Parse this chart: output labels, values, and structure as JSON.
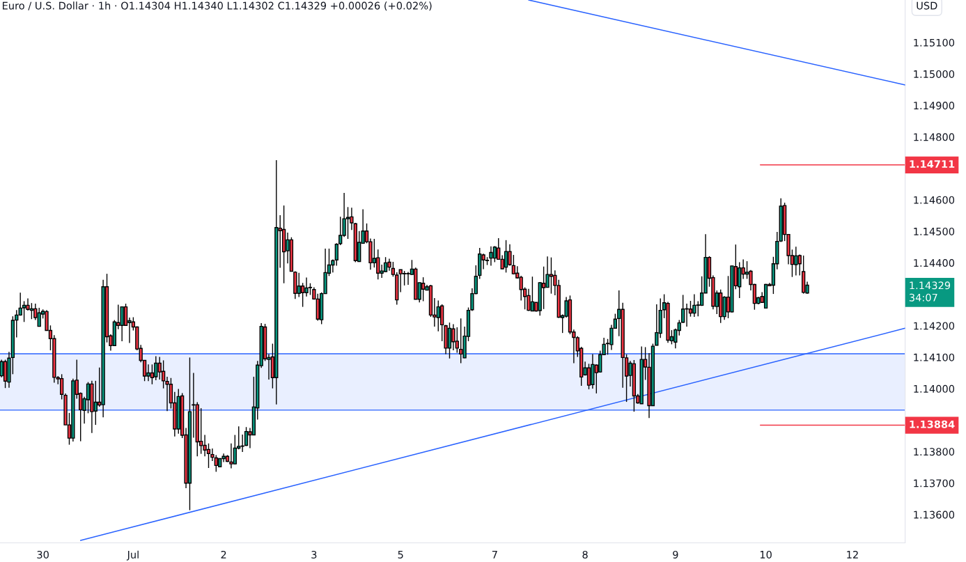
{
  "chart_data": {
    "type": "candlestick",
    "title": "Euro / U.S. Dollar · 1h · O1.14304 H1.14340 L1.14302 C1.14329 +0.00026 (+0.02%)",
    "ylabel": "USD",
    "colors": [
      "#089981",
      "#f23645",
      "#089981",
      "#089981",
      "#089981",
      "#089981",
      "#089981",
      "#f23645",
      "#089981",
      "#f23645",
      "#089981",
      "#089981",
      "#f23645",
      "#f23645",
      "#f23645",
      "#f23645",
      "#f23645",
      "#f23645",
      "#f23645",
      "#089981",
      "#f23645",
      "#f23645",
      "#089981",
      "#089981",
      "#f23645",
      "#089981",
      "#f23645",
      "#089981",
      "#f23645",
      "#f23645",
      "#089981",
      "#f23645",
      "#089981",
      "#f23645",
      "#089981",
      "#f23645",
      "#f23645",
      "#f23645",
      "#f23645",
      "#089981",
      "#f23645",
      "#089981",
      "#f23645",
      "#f23645",
      "#f23645",
      "#f23645",
      "#f23645",
      "#089981",
      "#f23645",
      "#f23645",
      "#089981",
      "#f23645",
      "#f23645",
      "#f23645",
      "#f23645",
      "#f23645",
      "#f23645",
      "#f23645",
      "#089981",
      "#089981",
      "#f23645",
      "#f23645",
      "#089981",
      "#089981",
      "#089981",
      "#089981",
      "#f23645",
      "#089981",
      "#089981",
      "#089981",
      "#f23645",
      "#089981",
      "#f23645",
      "#089981",
      "#f23645",
      "#f23645",
      "#089981",
      "#f23645",
      "#f23645",
      "#089981",
      "#f23645",
      "#089981",
      "#f23645",
      "#f23645",
      "#f23645",
      "#089981",
      "#089981",
      "#089981",
      "#089981",
      "#089981",
      "#089981",
      "#089981",
      "#089981",
      "#f23645",
      "#f23645",
      "#089981",
      "#089981",
      "#f23645",
      "#f23645",
      "#089981",
      "#f23645",
      "#089981",
      "#089981",
      "#f23645",
      "#f23645",
      "#f23645",
      "#f23645",
      "#089981",
      "#f23645",
      "#089981",
      "#f23645",
      "#089981",
      "#f23645",
      "#089981",
      "#f23645",
      "#f23645",
      "#089981",
      "#f23645",
      "#f23645",
      "#089981",
      "#f23645",
      "#f23645",
      "#f23645",
      "#089981",
      "#089981",
      "#089981",
      "#089981",
      "#089981",
      "#f23645",
      "#089981",
      "#089981",
      "#089981",
      "#f23645",
      "#f23645",
      "#089981",
      "#f23645",
      "#f23645",
      "#f23645",
      "#f23645",
      "#f23645",
      "#f23645",
      "#089981",
      "#f23645",
      "#089981",
      "#f23645",
      "#089981",
      "#f23645",
      "#f23645",
      "#f23645",
      "#089981",
      "#089981",
      "#f23645",
      "#f23645",
      "#f23645",
      "#f23645",
      "#089981",
      "#f23645",
      "#089981",
      "#f23645",
      "#089981",
      "#089981",
      "#f23645",
      "#089981",
      "#089981",
      "#089981",
      "#f23645",
      "#f23645",
      "#089981",
      "#f23645",
      "#f23645",
      "#089981",
      "#f23645",
      "#f23645",
      "#089981",
      "#089981",
      "#089981",
      "#089981",
      "#f23645",
      "#089981",
      "#089981",
      "#089981",
      "#089981",
      "#089981",
      "#f23645",
      "#089981",
      "#089981",
      "#089981",
      "#089981",
      "#f23645",
      "#f23645",
      "#089981",
      "#f23645",
      "#089981",
      "#f23645",
      "#089981",
      "#f23645",
      "#089981",
      "#f23645",
      "#089981",
      "#f23645",
      "#f23645",
      "#089981",
      "#f23645",
      "#089981",
      "#f23645",
      "#089981",
      "#089981",
      "#089981",
      "#f23645",
      "#f23645",
      "#f23645",
      "#089981",
      "#f23645",
      "#f23645",
      "#089981",
      null,
      null,
      null,
      null,
      null,
      null,
      null,
      null,
      null,
      null,
      null,
      null,
      null,
      null,
      null,
      null,
      null,
      null,
      null,
      null,
      null,
      null,
      null,
      null,
      null,
      null
    ],
    "categories": [
      null,
      null,
      null,
      null,
      null,
      null,
      null,
      null,
      null,
      null,
      null,
      "30",
      null,
      null,
      null,
      null,
      null,
      null,
      null,
      null,
      null,
      null,
      null,
      null,
      null,
      null,
      null,
      null,
      null,
      null,
      null,
      null,
      null,
      null,
      null,
      "Jul",
      null,
      null,
      null,
      null,
      null,
      null,
      null,
      null,
      null,
      null,
      null,
      null,
      null,
      null,
      null,
      null,
      null,
      null,
      null,
      null,
      null,
      null,
      null,
      "2",
      null,
      null,
      null,
      null,
      null,
      null,
      null,
      null,
      null,
      null,
      null,
      null,
      null,
      null,
      null,
      null,
      null,
      null,
      null,
      null,
      null,
      null,
      null,
      "3",
      null,
      null,
      null,
      null,
      null,
      null,
      null,
      null,
      null,
      null,
      null,
      null,
      null,
      null,
      null,
      null,
      null,
      null,
      null,
      null,
      null,
      null,
      "5",
      null,
      null,
      null,
      null,
      null,
      null,
      null,
      null,
      null,
      null,
      null,
      null,
      null,
      null,
      null,
      null,
      null,
      null,
      null,
      null,
      null,
      null,
      null,
      null,
      "7",
      null,
      null,
      null,
      null,
      null,
      null,
      null,
      null,
      null,
      null,
      null,
      null,
      null,
      null,
      null,
      null,
      null,
      null,
      null,
      null,
      null,
      null,
      null,
      "8",
      null,
      null,
      null,
      null,
      null,
      null,
      null,
      null,
      null,
      null,
      null,
      null,
      null,
      null,
      null,
      null,
      null,
      null,
      null,
      null,
      null,
      null,
      null,
      "9",
      null,
      null,
      null,
      null,
      null,
      null,
      null,
      null,
      null,
      null,
      null,
      null,
      null,
      null,
      null,
      null,
      null,
      null,
      null,
      null,
      null,
      null,
      null,
      "10",
      null,
      null,
      null,
      null,
      null,
      null,
      null,
      null,
      null,
      null,
      null,
      null,
      null,
      null,
      null,
      null,
      null,
      null,
      null,
      null,
      null,
      null,
      "12",
      null,
      null,
      null,
      null,
      null,
      null,
      null,
      null,
      null,
      null,
      null,
      null,
      null,
      null
    ],
    "ohlc": [
      [
        1.14041,
        1.14092,
        1.14036,
        1.14086
      ],
      [
        1.14086,
        1.14092,
        1.14002,
        1.14024
      ],
      [
        1.14021,
        1.14117,
        1.14003,
        1.14097
      ],
      [
        1.14099,
        1.1423,
        1.14046,
        1.14217
      ],
      [
        1.14218,
        1.1425,
        1.14163,
        1.14234
      ],
      [
        1.14234,
        1.14305,
        1.14232,
        1.14256
      ],
      [
        1.14257,
        1.14278,
        1.14212,
        1.14265
      ],
      [
        1.14265,
        1.14287,
        1.14248,
        1.14252
      ],
      [
        1.14249,
        1.14272,
        1.14221,
        1.14254
      ],
      [
        1.14254,
        1.1427,
        1.14218,
        1.14226
      ],
      [
        1.14198,
        1.14257,
        1.14197,
        1.14241
      ],
      [
        1.14237,
        1.14252,
        1.14223,
        1.14246
      ],
      [
        1.14245,
        1.1425,
        1.14184,
        1.14185
      ],
      [
        1.14185,
        1.14201,
        1.14122,
        1.14159
      ],
      [
        1.14159,
        1.1417,
        1.14019,
        1.14036
      ],
      [
        1.14035,
        1.1404,
        1.14014,
        1.14031
      ],
      [
        1.14032,
        1.14046,
        1.13966,
        1.13982
      ],
      [
        1.13979,
        1.13985,
        1.13885,
        1.13885
      ],
      [
        1.13885,
        1.13923,
        1.13822,
        1.13843
      ],
      [
        1.13843,
        1.14032,
        1.13832,
        1.14025
      ],
      [
        1.14027,
        1.14092,
        1.13968,
        1.13982
      ],
      [
        1.13985,
        1.13988,
        1.13833,
        1.13933
      ],
      [
        1.13931,
        1.13974,
        1.13889,
        1.13968
      ],
      [
        1.13965,
        1.14021,
        1.13922,
        1.14015
      ],
      [
        1.14015,
        1.14025,
        1.13859,
        1.13927
      ],
      [
        1.13929,
        1.14025,
        1.13885,
        1.13957
      ],
      [
        1.13957,
        1.14067,
        1.13943,
        1.13948
      ],
      [
        1.13949,
        1.14346,
        1.13909,
        1.14324
      ],
      [
        1.14324,
        1.14365,
        1.14147,
        1.14165
      ],
      [
        1.14168,
        1.14173,
        1.14121,
        1.14137
      ],
      [
        1.14137,
        1.14218,
        1.14136,
        1.14212
      ],
      [
        1.1421,
        1.14267,
        1.14189,
        1.14201
      ],
      [
        1.14201,
        1.14261,
        1.14151,
        1.1426
      ],
      [
        1.1426,
        1.1427,
        1.14201,
        1.14201
      ],
      [
        1.1421,
        1.14226,
        1.14145,
        1.14216
      ],
      [
        1.14212,
        1.14227,
        1.14185,
        1.14196
      ],
      [
        1.14196,
        1.14198,
        1.14122,
        1.14126
      ],
      [
        1.14128,
        1.14139,
        1.14084,
        1.1409
      ],
      [
        1.1409,
        1.1409,
        1.14024,
        1.1404
      ],
      [
        1.1404,
        1.14077,
        1.14024,
        1.1405
      ],
      [
        1.1405,
        1.14077,
        1.14014,
        1.14035
      ],
      [
        1.14038,
        1.14103,
        1.14027,
        1.14081
      ],
      [
        1.14081,
        1.14101,
        1.14029,
        1.14053
      ],
      [
        1.14055,
        1.1409,
        1.14001,
        1.14025
      ],
      [
        1.14023,
        1.14038,
        1.13929,
        1.14014
      ],
      [
        1.14014,
        1.14034,
        1.13937,
        1.13955
      ],
      [
        1.13955,
        1.1399,
        1.13848,
        1.13872
      ],
      [
        1.13872,
        1.13999,
        1.13857,
        1.13975
      ],
      [
        1.13977,
        1.13986,
        1.13843,
        1.13852
      ],
      [
        1.13853,
        1.13875,
        1.13684,
        1.137
      ],
      [
        1.137,
        1.14099,
        1.13614,
        1.13927
      ],
      [
        1.13949,
        1.1405,
        1.13844,
        1.13948
      ],
      [
        1.13949,
        1.13957,
        1.13785,
        1.13831
      ],
      [
        1.13833,
        1.13938,
        1.13793,
        1.13819
      ],
      [
        1.1382,
        1.13853,
        1.13785,
        1.13805
      ],
      [
        1.13807,
        1.13826,
        1.13748,
        1.13794
      ],
      [
        1.13791,
        1.1381,
        1.1377,
        1.13782
      ],
      [
        1.1378,
        1.13789,
        1.13736,
        1.13756
      ],
      [
        1.13752,
        1.13778,
        1.13751,
        1.13778
      ],
      [
        1.13778,
        1.13794,
        1.13767,
        1.13785
      ],
      [
        1.13785,
        1.13789,
        1.13767,
        1.13769
      ],
      [
        1.13767,
        1.13826,
        1.13747,
        1.13761
      ],
      [
        1.13761,
        1.13853,
        1.1376,
        1.13811
      ],
      [
        1.13811,
        1.1388,
        1.13807,
        1.13817
      ],
      [
        1.13817,
        1.13854,
        1.13799,
        1.13818
      ],
      [
        1.1382,
        1.13878,
        1.13818,
        1.13864
      ],
      [
        1.13863,
        1.13875,
        1.13811,
        1.13853
      ],
      [
        1.13853,
        1.14038,
        1.13852,
        1.13942
      ],
      [
        1.13939,
        1.14088,
        1.13902,
        1.14075
      ],
      [
        1.14073,
        1.14208,
        1.14066,
        1.14198
      ],
      [
        1.14196,
        1.14206,
        1.14088,
        1.14095
      ],
      [
        1.14093,
        1.1411,
        1.14029,
        1.14099
      ],
      [
        1.14101,
        1.14143,
        1.14001,
        1.14035
      ],
      [
        1.14035,
        1.14726,
        1.1395,
        1.14512
      ],
      [
        1.1451,
        1.14551,
        1.14384,
        1.14502
      ],
      [
        1.14506,
        1.14582,
        1.14335,
        1.14435
      ],
      [
        1.14438,
        1.14496,
        1.14398,
        1.14473
      ],
      [
        1.14473,
        1.14481,
        1.14372,
        1.14373
      ],
      [
        1.1437,
        1.14373,
        1.14285,
        1.14303
      ],
      [
        1.14303,
        1.14368,
        1.14291,
        1.14326
      ],
      [
        1.14326,
        1.14336,
        1.1426,
        1.14305
      ],
      [
        1.14305,
        1.14353,
        1.14293,
        1.1432
      ],
      [
        1.14322,
        1.14335,
        1.14298,
        1.14321
      ],
      [
        1.14315,
        1.14322,
        1.14283,
        1.14285
      ],
      [
        1.14285,
        1.14302,
        1.14216,
        1.14221
      ],
      [
        1.14219,
        1.14306,
        1.14205,
        1.14302
      ],
      [
        1.14302,
        1.14445,
        1.14301,
        1.14369
      ],
      [
        1.14367,
        1.14445,
        1.14358,
        1.14393
      ],
      [
        1.14393,
        1.14411,
        1.14369,
        1.14407
      ],
      [
        1.14409,
        1.14462,
        1.14391,
        1.14459
      ],
      [
        1.14461,
        1.14546,
        1.14456,
        1.14487
      ],
      [
        1.14487,
        1.14622,
        1.14482,
        1.1454
      ],
      [
        1.1454,
        1.14577,
        1.14476,
        1.14544
      ],
      [
        1.14546,
        1.14575,
        1.14504,
        1.14527
      ],
      [
        1.14524,
        1.14527,
        1.14402,
        1.14407
      ],
      [
        1.14404,
        1.14501,
        1.14404,
        1.14465
      ],
      [
        1.14462,
        1.1457,
        1.14461,
        1.14501
      ],
      [
        1.14501,
        1.14525,
        1.14462,
        1.14467
      ],
      [
        1.14467,
        1.14477,
        1.14378,
        1.144
      ],
      [
        1.144,
        1.14476,
        1.14385,
        1.14414
      ],
      [
        1.14416,
        1.14442,
        1.14347,
        1.14367
      ],
      [
        1.14367,
        1.14394,
        1.14352,
        1.14374
      ],
      [
        1.14372,
        1.14418,
        1.14371,
        1.144
      ],
      [
        1.14402,
        1.14413,
        1.14375,
        1.14386
      ],
      [
        1.14382,
        1.14403,
        1.14356,
        1.14363
      ],
      [
        1.14361,
        1.1437,
        1.14267,
        1.14282
      ],
      [
        1.14378,
        1.14378,
        1.14307,
        1.14365
      ],
      [
        1.14365,
        1.14374,
        1.14328,
        1.14366
      ],
      [
        1.14366,
        1.14371,
        1.1433,
        1.14365
      ],
      [
        1.14363,
        1.14409,
        1.14361,
        1.1438
      ],
      [
        1.1438,
        1.14385,
        1.14284,
        1.14284
      ],
      [
        1.14284,
        1.14337,
        1.14274,
        1.14337
      ],
      [
        1.14335,
        1.14354,
        1.14278,
        1.14316
      ],
      [
        1.14313,
        1.1433,
        1.14313,
        1.14324
      ],
      [
        1.14327,
        1.1433,
        1.14228,
        1.14234
      ],
      [
        1.14234,
        1.14288,
        1.14197,
        1.14228
      ],
      [
        1.14226,
        1.1428,
        1.14182,
        1.1426
      ],
      [
        1.14263,
        1.14268,
        1.14151,
        1.14203
      ],
      [
        1.142,
        1.14203,
        1.1411,
        1.14129
      ],
      [
        1.14129,
        1.1421,
        1.14096,
        1.14192
      ],
      [
        1.1419,
        1.14205,
        1.14122,
        1.14149
      ],
      [
        1.14151,
        1.14195,
        1.14114,
        1.14129
      ],
      [
        1.14125,
        1.14223,
        1.14081,
        1.1411
      ],
      [
        1.14098,
        1.14197,
        1.14097,
        1.14167
      ],
      [
        1.14166,
        1.14258,
        1.14151,
        1.14249
      ],
      [
        1.14251,
        1.14319,
        1.14247,
        1.14302
      ],
      [
        1.14302,
        1.14392,
        1.143,
        1.14357
      ],
      [
        1.1436,
        1.14447,
        1.14349,
        1.14428
      ],
      [
        1.14425,
        1.14429,
        1.1438,
        1.14409
      ],
      [
        1.14407,
        1.14418,
        1.14393,
        1.14408
      ],
      [
        1.14415,
        1.14452,
        1.14391,
        1.14433
      ],
      [
        1.14415,
        1.14453,
        1.14402,
        1.1445
      ],
      [
        1.14447,
        1.14478,
        1.14411,
        1.14411
      ],
      [
        1.14411,
        1.14424,
        1.1438,
        1.14381
      ],
      [
        1.14386,
        1.14472,
        1.14369,
        1.14436
      ],
      [
        1.14436,
        1.14459,
        1.14391,
        1.14394
      ],
      [
        1.14391,
        1.14425,
        1.14363,
        1.14365
      ],
      [
        1.14367,
        1.14389,
        1.1435,
        1.14352
      ],
      [
        1.14354,
        1.14359,
        1.1428,
        1.14315
      ],
      [
        1.14316,
        1.14322,
        1.14252,
        1.14293
      ],
      [
        1.14296,
        1.14317,
        1.14247,
        1.14249
      ],
      [
        1.14247,
        1.14356,
        1.14247,
        1.14276
      ],
      [
        1.14274,
        1.14274,
        1.14245,
        1.14247
      ],
      [
        1.14248,
        1.14339,
        1.14232,
        1.14337
      ],
      [
        1.14335,
        1.14388,
        1.14253,
        1.14321
      ],
      [
        1.14322,
        1.1442,
        1.14321,
        1.14363
      ],
      [
        1.14363,
        1.14417,
        1.14302,
        1.14357
      ],
      [
        1.1436,
        1.14376,
        1.14297,
        1.14328
      ],
      [
        1.14328,
        1.14346,
        1.14225,
        1.14227
      ],
      [
        1.14226,
        1.14236,
        1.14177,
        1.14232
      ],
      [
        1.1423,
        1.14291,
        1.14226,
        1.14279
      ],
      [
        1.14282,
        1.14296,
        1.14173,
        1.1418
      ],
      [
        1.1418,
        1.14188,
        1.14081,
        1.14163
      ],
      [
        1.14162,
        1.14167,
        1.14101,
        1.1412
      ],
      [
        1.14128,
        1.14133,
        1.14009,
        1.14037
      ],
      [
        1.14044,
        1.14086,
        1.14042,
        1.14066
      ],
      [
        1.14066,
        1.14079,
        1.13998,
        1.14011
      ],
      [
        1.14013,
        1.1411,
        1.14,
        1.14077
      ],
      [
        1.14075,
        1.14077,
        1.13985,
        1.14051
      ],
      [
        1.14053,
        1.14121,
        1.14051,
        1.14108
      ],
      [
        1.14108,
        1.14162,
        1.14107,
        1.14141
      ],
      [
        1.14144,
        1.14158,
        1.14108,
        1.14143
      ],
      [
        1.1414,
        1.14203,
        1.14123,
        1.14192
      ],
      [
        1.14192,
        1.14238,
        1.14192,
        1.14221
      ],
      [
        1.14223,
        1.14312,
        1.14167,
        1.14252
      ],
      [
        1.14252,
        1.14273,
        1.14003,
        1.14099
      ],
      [
        1.14098,
        1.14109,
        1.13958,
        1.1404
      ],
      [
        1.14042,
        1.14088,
        1.14007,
        1.14081
      ],
      [
        1.14079,
        1.14091,
        1.13927,
        1.13977
      ],
      [
        1.13977,
        1.13983,
        1.13952,
        1.13955
      ],
      [
        1.13952,
        1.14134,
        1.13952,
        1.14093
      ],
      [
        1.14093,
        1.14132,
        1.14028,
        1.14069
      ],
      [
        1.14068,
        1.14113,
        1.13907,
        1.13946
      ],
      [
        1.13946,
        1.14143,
        1.13946,
        1.14135
      ],
      [
        1.14138,
        1.14268,
        1.14138,
        1.14178
      ],
      [
        1.14176,
        1.14287,
        1.14161,
        1.14249
      ],
      [
        1.14251,
        1.143,
        1.14224,
        1.14273
      ],
      [
        1.14271,
        1.14276,
        1.14146,
        1.14154
      ],
      [
        1.14152,
        1.14186,
        1.14141,
        1.14165
      ],
      [
        1.14148,
        1.14191,
        1.14128,
        1.14187
      ],
      [
        1.14185,
        1.14218,
        1.14169,
        1.14209
      ],
      [
        1.14211,
        1.14298,
        1.14209,
        1.14253
      ],
      [
        1.14253,
        1.1427,
        1.14197,
        1.14254
      ],
      [
        1.14253,
        1.14279,
        1.14229,
        1.1424
      ],
      [
        1.1424,
        1.143,
        1.14228,
        1.14265
      ],
      [
        1.14265,
        1.14278,
        1.1423,
        1.14266
      ],
      [
        1.14265,
        1.14357,
        1.14263,
        1.14304
      ],
      [
        1.14304,
        1.14491,
        1.14304,
        1.14417
      ],
      [
        1.14417,
        1.14421,
        1.14324,
        1.14351
      ],
      [
        1.14353,
        1.1436,
        1.14252,
        1.14262
      ],
      [
        1.14261,
        1.14312,
        1.14237,
        1.14304
      ],
      [
        1.14304,
        1.14315,
        1.14209,
        1.14229
      ],
      [
        1.14229,
        1.14294,
        1.14219,
        1.14291
      ],
      [
        1.14291,
        1.14358,
        1.14224,
        1.14244
      ],
      [
        1.14244,
        1.14391,
        1.14242,
        1.1439
      ],
      [
        1.14388,
        1.14458,
        1.14316,
        1.14327
      ],
      [
        1.14324,
        1.14402,
        1.14288,
        1.14384
      ],
      [
        1.14384,
        1.14411,
        1.14349,
        1.14364
      ],
      [
        1.14364,
        1.14405,
        1.14349,
        1.1437
      ],
      [
        1.14373,
        1.14377,
        1.14312,
        1.14331
      ],
      [
        1.14331,
        1.14333,
        1.14251,
        1.14271
      ],
      [
        1.14271,
        1.14292,
        1.14268,
        1.14289
      ],
      [
        1.14293,
        1.14307,
        1.14273,
        1.14274
      ],
      [
        1.14256,
        1.14333,
        1.14256,
        1.14331
      ],
      [
        1.14331,
        1.14336,
        1.14326,
        1.14327
      ],
      [
        1.14329,
        1.14419,
        1.14301,
        1.14397
      ],
      [
        1.14397,
        1.14498,
        1.14379,
        1.14468
      ],
      [
        1.14469,
        1.14605,
        1.14466,
        1.1458
      ],
      [
        1.14582,
        1.14591,
        1.14469,
        1.1449
      ],
      [
        1.1449,
        1.14491,
        1.14395,
        1.14423
      ],
      [
        1.14423,
        1.14442,
        1.14355,
        1.14395
      ],
      [
        1.14394,
        1.14451,
        1.1436,
        1.14422
      ],
      [
        1.14423,
        1.14426,
        1.1436,
        1.14397
      ],
      [
        1.14372,
        1.14423,
        1.14302,
        1.14306
      ],
      [
        1.14304,
        1.1434,
        1.14302,
        1.14329
      ],
      null,
      null,
      null,
      null,
      null,
      null,
      null,
      null,
      null,
      null,
      null,
      null,
      null,
      null,
      null,
      null,
      null,
      null,
      null,
      null,
      null,
      null,
      null,
      null,
      null,
      null
    ],
    "series": [
      {
        "type": "line",
        "color": "#2962ff",
        "values": [
          null,
          null,
          null,
          null,
          null,
          null,
          null,
          null,
          null,
          null,
          null,
          null,
          null,
          null,
          null,
          null,
          null,
          null,
          null,
          null,
          null,
          1.13518,
          null,
          null,
          null,
          null,
          null,
          null,
          null,
          null,
          null,
          null,
          null,
          null,
          null,
          null,
          null,
          null,
          null,
          null,
          null,
          null,
          null,
          null,
          null,
          null,
          null,
          null,
          null,
          null,
          null,
          null,
          null,
          null,
          null,
          null,
          null,
          null,
          null,
          null,
          null,
          null,
          null,
          null,
          null,
          null,
          null,
          null,
          null,
          null,
          null,
          null,
          null,
          null,
          null,
          null,
          null,
          null,
          null,
          null,
          null,
          null,
          null,
          null,
          null,
          null,
          null,
          null,
          null,
          null,
          null,
          null,
          null,
          null,
          null,
          null,
          null,
          null,
          null,
          null,
          null,
          null,
          null,
          null,
          null,
          null,
          null,
          null,
          null,
          null,
          null,
          null,
          null,
          null,
          null,
          null,
          null,
          null,
          null,
          null,
          null,
          null,
          null,
          null,
          null,
          null,
          null,
          null,
          null,
          null,
          null,
          null,
          null,
          null,
          null,
          null,
          null,
          null,
          null,
          null,
          null,
          null,
          null,
          null,
          null,
          null,
          null,
          null,
          null,
          null,
          null,
          null,
          null,
          null,
          null,
          null,
          null,
          null,
          null,
          null,
          null,
          null,
          null,
          null,
          null,
          null,
          null,
          null,
          null,
          null,
          null,
          null,
          null,
          null,
          null,
          null,
          null,
          null,
          null,
          null,
          null,
          null,
          null,
          null,
          null,
          null,
          null,
          null,
          null,
          null,
          null,
          null,
          null,
          null,
          null,
          null,
          null,
          null,
          null,
          null,
          null,
          null,
          null,
          null,
          null,
          null,
          null,
          null,
          null,
          null,
          null,
          null,
          null,
          null,
          null,
          null,
          null,
          null,
          null,
          null,
          null,
          null,
          null,
          null,
          null,
          null,
          null,
          null,
          null,
          null,
          null,
          null,
          null,
          null,
          null,
          null,
          null,
          null,
          null,
          null,
          1.14192
        ]
      },
      {
        "type": "line",
        "color": "#2962ff",
        "values": [
          null,
          null,
          null,
          null,
          null,
          null,
          null,
          null,
          null,
          null,
          null,
          null,
          null,
          null,
          null,
          null,
          null,
          null,
          null,
          null,
          null,
          null,
          null,
          null,
          null,
          null,
          null,
          null,
          null,
          null,
          null,
          null,
          null,
          null,
          null,
          null,
          null,
          null,
          null,
          null,
          null,
          null,
          null,
          null,
          null,
          null,
          null,
          null,
          null,
          null,
          null,
          null,
          null,
          null,
          null,
          null,
          null,
          null,
          null,
          null,
          null,
          null,
          null,
          null,
          null,
          null,
          null,
          null,
          null,
          null,
          null,
          null,
          null,
          null,
          null,
          null,
          null,
          null,
          null,
          null,
          null,
          null,
          null,
          null,
          null,
          null,
          null,
          null,
          null,
          null,
          null,
          null,
          null,
          null,
          null,
          null,
          null,
          null,
          null,
          null,
          null,
          null,
          null,
          null,
          null,
          null,
          null,
          null,
          null,
          null,
          null,
          null,
          null,
          null,
          null,
          null,
          null,
          null,
          null,
          null,
          null,
          null,
          null,
          null,
          null,
          null,
          null,
          null,
          null,
          null,
          null,
          null,
          null,
          null,
          null,
          null,
          null,
          null,
          null,
          null,
          1.15235,
          null,
          null,
          null,
          null,
          null,
          null,
          null,
          null,
          null,
          null,
          null,
          null,
          null,
          null,
          null,
          null,
          null,
          null,
          null,
          null,
          null,
          null,
          null,
          null,
          null,
          null,
          null,
          null,
          null,
          null,
          null,
          null,
          null,
          null,
          null,
          null,
          null,
          null,
          null,
          null,
          null,
          null,
          null,
          null,
          null,
          null,
          null,
          null,
          null,
          null,
          null,
          null,
          null,
          null,
          null,
          null,
          null,
          null,
          null,
          null,
          null,
          null,
          null,
          null,
          null,
          null,
          null,
          null,
          null,
          null,
          null,
          null,
          null,
          null,
          null,
          null,
          null,
          null,
          null,
          null,
          null,
          null,
          null,
          null,
          null,
          null,
          null,
          null,
          null,
          null,
          null,
          null,
          null,
          null,
          null,
          null,
          null,
          null,
          null,
          1.14965
        ]
      }
    ],
    "bands": [
      {
        "axis": "y",
        "from": 1.13932,
        "to": 1.14111,
        "color": "#2962ff"
      }
    ],
    "ref_lines": [
      {
        "axis": "y",
        "value": 1.14111,
        "color": "#2962ff",
        "line_style": "solid"
      },
      {
        "axis": "y",
        "value": 1.13932,
        "color": "#2962ff",
        "line_style": "solid"
      },
      {
        "axis": "y",
        "value": 1.14711,
        "label": "1.14711",
        "color": "#f23645",
        "line_style": "solid"
      },
      {
        "axis": "y",
        "value": 1.13884,
        "label": "1.13884",
        "color": "#f23645",
        "line_style": "solid"
      }
    ],
    "annotations": [
      "1.14329\n34:07"
    ],
    "ylim": [
      1.1351,
      1.15235
    ],
    "yticks": [
      {
        "value": 1.136,
        "label": "1.13600"
      },
      {
        "value": 1.137,
        "label": "1.13700"
      },
      {
        "value": 1.138,
        "label": "1.13800"
      },
      {
        "value": 1.14,
        "label": "1.14000"
      },
      {
        "value": 1.141,
        "label": "1.14100"
      },
      {
        "value": 1.142,
        "label": "1.14200"
      },
      {
        "value": 1.144,
        "label": "1.14400"
      },
      {
        "value": 1.145,
        "label": "1.14500"
      },
      {
        "value": 1.146,
        "label": "1.14600"
      },
      {
        "value": 1.148,
        "label": "1.14800"
      },
      {
        "value": 1.149,
        "label": "1.14900"
      },
      {
        "value": 1.15,
        "label": "1.15000"
      },
      {
        "value": 1.151,
        "label": "1.15100"
      }
    ],
    "grid": false,
    "legend": false
  }
}
